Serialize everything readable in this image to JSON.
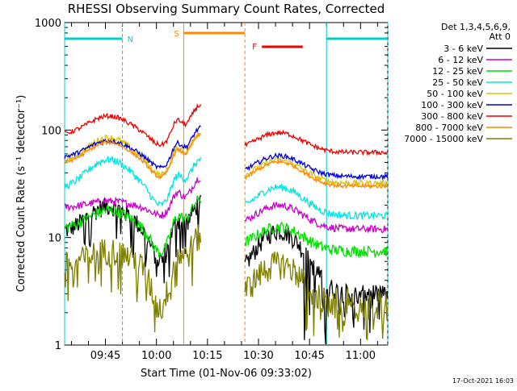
{
  "chart_data": {
    "type": "line",
    "title": "RHESSI Observing Summary Count Rates, Corrected",
    "xlabel": "Start Time (01-Nov-06 09:33:02)",
    "ylabel": "Corrected Count Rate (s⁻¹ detector⁻¹)",
    "y_scale": "log",
    "ylim": [
      1,
      1000
    ],
    "xlim_minutes_after_0933": [
      0,
      95
    ],
    "x_ticks": [
      "09:45",
      "10:00",
      "10:15",
      "10:30",
      "10:45",
      "11:00"
    ],
    "y_ticks": [
      "1",
      "10",
      "100",
      "1000"
    ],
    "legend_header": [
      "Det 1,3,4,5,6,9,",
      "Att 0"
    ],
    "legend_placement": "right",
    "series": [
      {
        "name": "3 - 6 keV",
        "color": "#000000",
        "level": 11,
        "noise": 0.2,
        "bump": 1.8,
        "dip": 0.55,
        "post": 3.0,
        "spike": 1
      },
      {
        "name": "6 - 12 keV",
        "color": "#cc00cc",
        "level": 19,
        "noise": 0.08,
        "bump": 1.15,
        "dip": 0.85,
        "post": 12,
        "spike": 0
      },
      {
        "name": "12 - 25 keV",
        "color": "#00dd00",
        "level": 12,
        "noise": 0.12,
        "bump": 1.5,
        "dip": 0.6,
        "post": 7.5,
        "spike": 0
      },
      {
        "name": "25 - 50 keV",
        "color": "#00e6e6",
        "level": 28,
        "noise": 0.08,
        "bump": 1.9,
        "dip": 0.7,
        "post": 16,
        "spike": 0
      },
      {
        "name": "50 - 100 keV",
        "color": "#ddc000",
        "level": 50,
        "noise": 0.07,
        "bump": 1.7,
        "dip": 0.75,
        "post": 32,
        "spike": 0
      },
      {
        "name": "100 - 300 keV",
        "color": "#0000dd",
        "level": 55,
        "noise": 0.05,
        "bump": 1.45,
        "dip": 0.8,
        "post": 37,
        "spike": 0
      },
      {
        "name": "300 - 800 keV",
        "color": "#ee0000",
        "level": 90,
        "noise": 0.05,
        "bump": 1.5,
        "dip": 0.8,
        "post": 62,
        "spike": 0
      },
      {
        "name": "800 - 7000 keV",
        "color": "#ff8800",
        "level": 48,
        "noise": 0.04,
        "bump": 1.6,
        "dip": 0.75,
        "post": 30,
        "spike": 0
      },
      {
        "name": "7000 - 15000 keV",
        "color": "#808000",
        "level": 5.5,
        "noise": 0.3,
        "bump": 1.4,
        "dip": 0.4,
        "post": 2.2,
        "spike": 1
      }
    ],
    "flags": [
      {
        "label": "",
        "type": "night",
        "start_min": 0,
        "end_min": 17,
        "color": "#00cccc"
      },
      {
        "label": "N",
        "type": "night_edge",
        "at_min": 17,
        "color": "#00cccc"
      },
      {
        "label": "S",
        "type": "saa",
        "start_min": 35,
        "end_min": 53,
        "color": "#ff8800"
      },
      {
        "label": "F",
        "type": "flare",
        "start_min": 58,
        "end_min": 70,
        "color": "#ee0000"
      },
      {
        "label": "",
        "type": "night",
        "start_min": 77,
        "end_min": 95,
        "color": "#00cccc"
      }
    ]
  },
  "footer": {
    "timestamp": "17-Oct-2021 16:03"
  }
}
